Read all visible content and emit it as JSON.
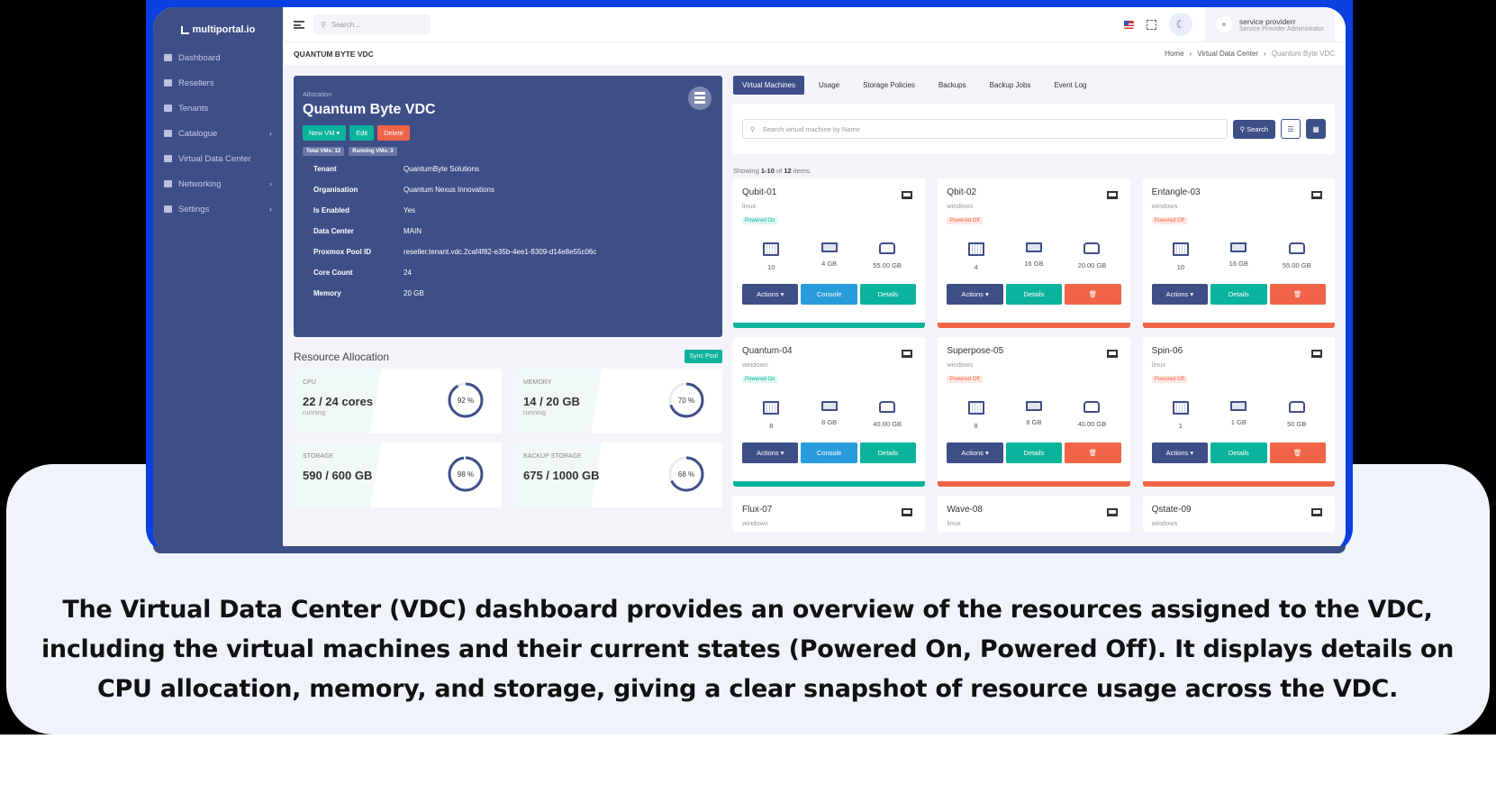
{
  "sidebar": {
    "brand": "multiportal.io",
    "items": [
      {
        "label": "Dashboard",
        "chevron": false
      },
      {
        "label": "Resellers",
        "chevron": false
      },
      {
        "label": "Tenants",
        "chevron": false
      },
      {
        "label": "Catalogue",
        "chevron": true
      },
      {
        "label": "Virtual Data Center",
        "chevron": false
      },
      {
        "label": "Networking",
        "chevron": true
      },
      {
        "label": "Settings",
        "chevron": true
      }
    ]
  },
  "topbar": {
    "search_placeholder": "Search...",
    "user_name": "service providerr",
    "user_role": "Service Provider Administrator"
  },
  "page": {
    "title": "QUANTUM BYTE VDC",
    "breadcrumb": [
      "Home",
      "Virtual Data Center",
      "Quantum Byte VDC"
    ]
  },
  "allocation": {
    "label": "Allocation",
    "name": "Quantum Byte VDC",
    "buttons": {
      "new_vm": "New VM",
      "edit": "Edit",
      "delete": "Delete"
    },
    "badges": {
      "total": "Total VMs: 12",
      "running": "Running VMs: 3"
    },
    "details": [
      {
        "k": "Tenant",
        "v": "QuantumByte Solutions"
      },
      {
        "k": "Organisation",
        "v": "Quantum Nexus Innovations"
      },
      {
        "k": "Is Enabled",
        "v": "Yes"
      },
      {
        "k": "Data Center",
        "v": "MAIN"
      },
      {
        "k": "Proxmox Pool ID",
        "v": "reseller.tenant.vdc.2caf4f82-e35b-4ee1-8309-d14e8e55c06c"
      },
      {
        "k": "Core Count",
        "v": "24"
      },
      {
        "k": "Memory",
        "v": "20 GB"
      }
    ]
  },
  "resources": {
    "title": "Resource Allocation",
    "sync": "Sync Pool",
    "stats": [
      {
        "label": "CPU",
        "value": "22 / 24 cores",
        "sub": "running",
        "pct": 92,
        "pct_label": "92 %"
      },
      {
        "label": "MEMORY",
        "value": "14 / 20 GB",
        "sub": "running",
        "pct": 70,
        "pct_label": "70 %"
      },
      {
        "label": "STORAGE",
        "value": "590 / 600 GB",
        "sub": "",
        "pct": 98,
        "pct_label": "98 %"
      },
      {
        "label": "BACKUP STORAGE",
        "value": "675 / 1000 GB",
        "sub": "",
        "pct": 68,
        "pct_label": "68 %"
      }
    ]
  },
  "tabs": [
    "Virtual Machines",
    "Usage",
    "Storage Policies",
    "Backups",
    "Backup Jobs",
    "Event Log"
  ],
  "vm_search": {
    "placeholder": "Search virtual machine by Name",
    "button": "Search"
  },
  "showing": {
    "prefix": "Showing ",
    "range": "1-10",
    "mid": " of ",
    "total": "12",
    "suffix": " items."
  },
  "vm_labels": {
    "actions": "Actions",
    "console": "Console",
    "details": "Details"
  },
  "vms": [
    {
      "name": "Qubit-01",
      "os": "linux",
      "status": "Powered On",
      "cpu": "10",
      "ram": "4 GB",
      "disk": "55.00 GB"
    },
    {
      "name": "Qbit-02",
      "os": "windows",
      "status": "Powered Off",
      "cpu": "4",
      "ram": "16 GB",
      "disk": "20.00 GB"
    },
    {
      "name": "Entangle-03",
      "os": "windows",
      "status": "Powered Off",
      "cpu": "10",
      "ram": "16 GB",
      "disk": "55.00 GB"
    },
    {
      "name": "Quantum-04",
      "os": "windows",
      "status": "Powered On",
      "cpu": "8",
      "ram": "8 GB",
      "disk": "40.00 GB"
    },
    {
      "name": "Superpose-05",
      "os": "windows",
      "status": "Powered Off",
      "cpu": "8",
      "ram": "8 GB",
      "disk": "40.00 GB"
    },
    {
      "name": "Spin-06",
      "os": "linux",
      "status": "Powered Off",
      "cpu": "1",
      "ram": "1 GB",
      "disk": "50 GB"
    },
    {
      "name": "Flux-07",
      "os": "windows"
    },
    {
      "name": "Wave-08",
      "os": "linux"
    },
    {
      "name": "Qstate-09",
      "os": "windows"
    }
  ],
  "caption": "The Virtual Data Center (VDC) dashboard provides an overview of the resources assigned to the VDC, including the virtual machines and their current states (Powered On, Powered Off). It displays details on CPU allocation, memory, and storage, giving a clear snapshot of resource usage across the VDC.",
  "colors": {
    "primary": "#3e4e87",
    "success": "#0ab39c",
    "danger": "#f06548",
    "info": "#299cdb"
  }
}
